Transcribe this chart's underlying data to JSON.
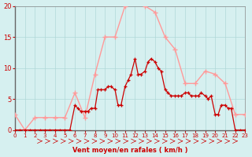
{
  "bg_color": "#d6f0f0",
  "grid_color": "#b0d8d8",
  "line_color_avg": "#ff9999",
  "line_color_wind": "#cc0000",
  "marker_color_avg": "#ff9999",
  "marker_color_wind": "#cc0000",
  "xlabel": "Vent moyen/en rafales ( km/h )",
  "xlabel_color": "#cc0000",
  "tick_color": "#cc0000",
  "xlim": [
    0,
    23
  ],
  "ylim": [
    0,
    20
  ],
  "yticks": [
    0,
    5,
    10,
    15,
    20
  ],
  "xticks": [
    0,
    1,
    2,
    3,
    4,
    5,
    6,
    7,
    8,
    9,
    10,
    11,
    12,
    13,
    14,
    15,
    16,
    17,
    18,
    19,
    20,
    21,
    22,
    23
  ],
  "hours": [
    0,
    1,
    2,
    3,
    4,
    5,
    6,
    7,
    8,
    9,
    10,
    11,
    12,
    13,
    14,
    15,
    16,
    17,
    18,
    19,
    20,
    21,
    22,
    23
  ],
  "avg_wind": [
    2.5,
    0,
    2,
    2,
    2,
    2,
    6,
    2,
    9,
    15,
    15,
    20,
    20.5,
    20,
    19,
    15,
    13,
    7.5,
    7.5,
    9.5,
    9,
    7.5,
    2.5,
    2.5
  ],
  "wind_x": [
    0,
    0.5,
    1,
    1.5,
    2,
    2.5,
    3,
    3.5,
    4,
    4.5,
    5,
    5.5,
    6,
    6.3,
    6.6,
    7,
    7.3,
    7.6,
    8,
    8.3,
    8.6,
    9,
    9.3,
    9.6,
    10,
    10.3,
    10.6,
    11,
    11.3,
    11.6,
    12,
    12.3,
    12.6,
    13,
    13.3,
    13.6,
    14,
    14.3,
    14.6,
    15,
    15.3,
    15.6,
    16,
    16.3,
    16.6,
    17,
    17.3,
    17.6,
    18,
    18.3,
    18.6,
    19,
    19.3,
    19.6,
    20,
    20.3,
    20.6,
    21,
    21.3,
    21.6,
    22,
    22.5,
    23
  ],
  "wind_y": [
    0,
    0,
    0,
    0,
    0,
    0,
    0,
    0,
    0,
    0,
    0,
    0,
    4,
    3.5,
    3,
    3,
    3,
    3.5,
    3.5,
    6.5,
    6.5,
    6.5,
    7,
    7,
    6.5,
    4,
    4,
    7,
    8,
    9,
    11.5,
    9,
    9,
    9.5,
    11,
    11.5,
    11,
    10,
    9.5,
    6.5,
    6,
    5.5,
    5.5,
    5.5,
    5.5,
    6,
    6,
    5.5,
    5.5,
    5.5,
    6,
    5.5,
    5,
    5.5,
    2.5,
    2.5,
    4,
    4,
    3.5,
    3.5,
    0,
    0,
    0
  ]
}
